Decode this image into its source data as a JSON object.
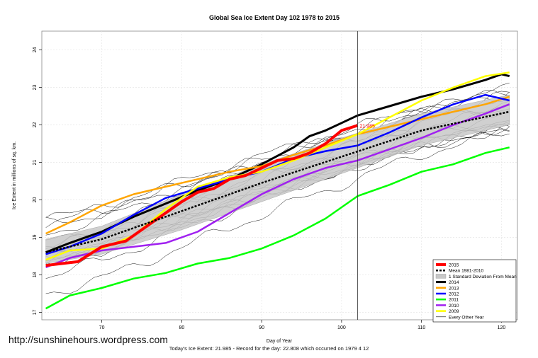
{
  "watermark": "http://sunshinehours.wordpress.com",
  "footer": "Today's Ice Extent: 21.985  - Record for the day: 22.808 which occurred on 1979 4 12",
  "chart_data": {
    "type": "line",
    "title": "Global Sea Ice Extent Day 102 1978 to 2015",
    "xlabel": "Day of Year",
    "ylabel": "Ice Extent in millions of sq. km.",
    "xlim": [
      62.5,
      122
    ],
    "ylim": [
      16.8,
      24.5
    ],
    "xticks": [
      70,
      80,
      90,
      100,
      110,
      120
    ],
    "yticks": [
      17,
      18,
      19,
      20,
      21,
      22,
      23,
      24
    ],
    "grid": true,
    "marker_day": 102,
    "annotation": "21.985",
    "legend_position": "bottom-right",
    "legend": [
      {
        "label": "2015",
        "kind": "line",
        "color": "#ff0000",
        "width": 4
      },
      {
        "label": "Mean 1981-2010",
        "kind": "dashed",
        "color": "#000000",
        "width": 2.5
      },
      {
        "label": "1 Standard Deviation From Mean",
        "kind": "band",
        "color": "#c8c8c8"
      },
      {
        "label": "2014",
        "kind": "line",
        "color": "#000000",
        "width": 3
      },
      {
        "label": "2013",
        "kind": "line",
        "color": "#ffa500",
        "width": 2.5
      },
      {
        "label": "2012",
        "kind": "line",
        "color": "#0000ff",
        "width": 2.5
      },
      {
        "label": "2011",
        "kind": "line",
        "color": "#00ff00",
        "width": 2.5
      },
      {
        "label": "2010",
        "kind": "line",
        "color": "#a020f0",
        "width": 2.5
      },
      {
        "label": "2009",
        "kind": "line",
        "color": "#ffff00",
        "width": 2.5
      },
      {
        "label": "Every Other Year",
        "kind": "thin",
        "color": "#000000",
        "width": 0.6
      }
    ],
    "mean": {
      "x": [
        63,
        70,
        80,
        90,
        100,
        110,
        121
      ],
      "y": [
        18.6,
        18.95,
        19.7,
        20.45,
        21.15,
        21.85,
        22.35
      ]
    },
    "std_band": {
      "x": [
        63,
        70,
        80,
        90,
        100,
        110,
        121
      ],
      "lower": [
        18.3,
        18.55,
        19.2,
        19.95,
        20.7,
        21.45,
        22.0
      ],
      "upper": [
        18.95,
        19.3,
        20.15,
        20.95,
        21.65,
        22.3,
        22.8
      ]
    },
    "series": [
      {
        "name": "2015",
        "color": "#ff0000",
        "width": 4,
        "x": [
          63,
          65,
          67,
          70,
          73,
          75,
          77,
          79,
          80,
          82,
          84,
          86,
          88,
          90,
          92,
          94,
          96,
          98,
          100,
          102
        ],
        "y": [
          18.25,
          18.3,
          18.35,
          18.75,
          18.9,
          19.2,
          19.5,
          19.8,
          19.95,
          20.2,
          20.3,
          20.55,
          20.65,
          20.85,
          21.05,
          21.1,
          21.25,
          21.5,
          21.85,
          21.985
        ]
      },
      {
        "name": "2014",
        "color": "#000000",
        "width": 3,
        "x": [
          63,
          66,
          70,
          74,
          78,
          82,
          86,
          90,
          94,
          96,
          98,
          100,
          102,
          106,
          110,
          114,
          118,
          120,
          121
        ],
        "y": [
          18.6,
          18.85,
          19.15,
          19.55,
          19.9,
          20.25,
          20.55,
          20.95,
          21.4,
          21.7,
          21.85,
          22.05,
          22.25,
          22.5,
          22.75,
          22.95,
          23.2,
          23.35,
          23.3
        ]
      },
      {
        "name": "2013",
        "color": "#ffa500",
        "width": 2.5,
        "x": [
          63,
          66,
          70,
          74,
          78,
          82,
          86,
          90,
          94,
          98,
          102,
          106,
          110,
          114,
          118,
          121
        ],
        "y": [
          19.1,
          19.4,
          19.85,
          20.15,
          20.35,
          20.55,
          20.75,
          20.9,
          21.2,
          21.45,
          21.75,
          21.95,
          22.15,
          22.35,
          22.55,
          22.75
        ]
      },
      {
        "name": "2012",
        "color": "#0000ff",
        "width": 2.5,
        "x": [
          63,
          66,
          70,
          74,
          78,
          82,
          86,
          90,
          94,
          98,
          102,
          106,
          110,
          114,
          118,
          121
        ],
        "y": [
          18.55,
          18.75,
          19.1,
          19.6,
          20.05,
          20.3,
          20.55,
          20.75,
          21.1,
          21.3,
          21.45,
          21.8,
          22.2,
          22.55,
          22.8,
          22.65
        ]
      },
      {
        "name": "2011",
        "color": "#00ff00",
        "width": 2.5,
        "x": [
          63,
          66,
          70,
          74,
          78,
          82,
          86,
          90,
          94,
          98,
          102,
          106,
          110,
          114,
          118,
          121
        ],
        "y": [
          17.1,
          17.45,
          17.65,
          17.9,
          18.05,
          18.3,
          18.45,
          18.7,
          19.05,
          19.5,
          20.1,
          20.4,
          20.75,
          20.95,
          21.25,
          21.4
        ]
      },
      {
        "name": "2010",
        "color": "#a020f0",
        "width": 2.5,
        "x": [
          63,
          66,
          70,
          74,
          78,
          82,
          86,
          90,
          94,
          98,
          102,
          106,
          110,
          114,
          118,
          121
        ],
        "y": [
          18.2,
          18.45,
          18.65,
          18.75,
          18.85,
          19.15,
          19.65,
          20.15,
          20.55,
          20.85,
          21.05,
          21.35,
          21.65,
          22.0,
          22.3,
          22.55
        ]
      },
      {
        "name": "2009",
        "color": "#ffff00",
        "width": 2.5,
        "x": [
          63,
          66,
          70,
          74,
          78,
          82,
          86,
          90,
          94,
          98,
          102,
          106,
          110,
          114,
          118,
          121
        ],
        "y": [
          18.4,
          18.65,
          18.7,
          19.05,
          19.75,
          20.35,
          20.6,
          20.75,
          21.05,
          21.4,
          21.75,
          22.2,
          22.65,
          23.0,
          23.3,
          23.4
        ]
      }
    ]
  }
}
